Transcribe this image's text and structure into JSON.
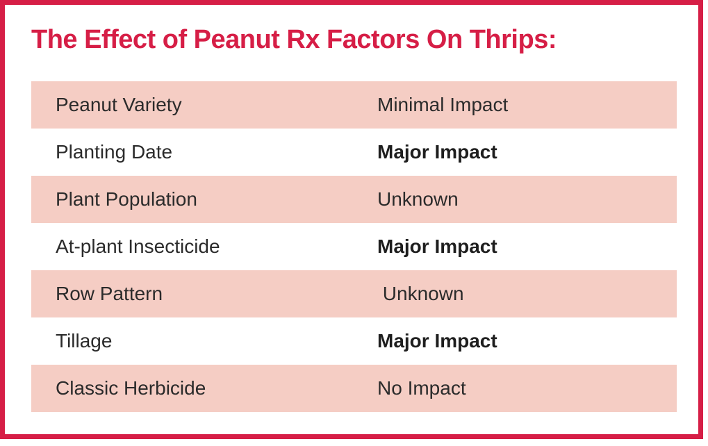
{
  "chart_data": {
    "type": "table",
    "title": "The Effect of Peanut Rx Factors On Thrips:",
    "rows": [
      {
        "factor": "Peanut Variety",
        "impact": "Minimal Impact",
        "impact_emphasis": false
      },
      {
        "factor": "Planting Date",
        "impact": "Major Impact",
        "impact_emphasis": true
      },
      {
        "factor": "Plant Population",
        "impact": "Unknown",
        "impact_emphasis": false
      },
      {
        "factor": "At-plant Insecticide",
        "impact": "Major Impact",
        "impact_emphasis": true
      },
      {
        "factor": "Row Pattern",
        "impact": " Unknown",
        "impact_emphasis": false
      },
      {
        "factor": "Tillage",
        "impact": "Major Impact",
        "impact_emphasis": true
      },
      {
        "factor": "Classic Herbicide",
        "impact": "No Impact",
        "impact_emphasis": false
      }
    ],
    "layout": {
      "shaded_row_indexes": [
        0,
        2,
        4,
        6
      ],
      "legend": "off",
      "grid": "off"
    }
  },
  "colors": {
    "accent": "#d61e46",
    "row_shade": "#f5cdc4",
    "text": "#2b2b2b"
  }
}
